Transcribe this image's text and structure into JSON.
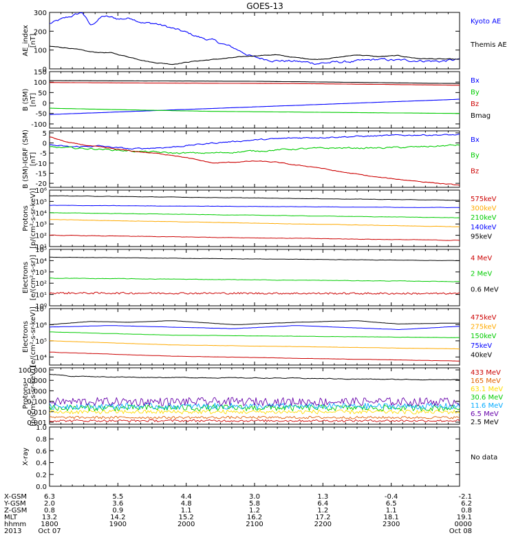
{
  "title": "GOES-13",
  "chart_data": [
    {
      "type": "line",
      "title": "",
      "ylabel": "AE_index",
      "yunit": "[nT]",
      "ylim": [
        0,
        300
      ],
      "yticks": [
        "300",
        "200",
        "100",
        "0"
      ],
      "ytick_values": [
        300,
        200,
        100,
        0
      ],
      "log": false,
      "series": [
        {
          "name": "Kyoto AE",
          "color": "#0000ff",
          "lw": 1.1,
          "x": [
            0,
            0.04,
            0.08,
            0.1,
            0.13,
            0.17,
            0.2,
            0.23,
            0.26,
            0.3,
            0.33,
            0.37,
            0.4,
            0.45,
            0.5,
            0.55,
            0.6,
            0.65,
            0.7,
            0.75,
            0.8,
            0.85,
            0.9,
            0.95,
            1.0
          ],
          "y": [
            240,
            270,
            300,
            230,
            280,
            265,
            270,
            245,
            240,
            215,
            195,
            165,
            150,
            110,
            60,
            45,
            40,
            30,
            35,
            40,
            50,
            45,
            45,
            40,
            50
          ],
          "noise": 10,
          "mode": "smooth"
        },
        {
          "name": "Themis AE",
          "color": "#000000",
          "lw": 1.1,
          "x": [
            0,
            0.05,
            0.1,
            0.15,
            0.2,
            0.25,
            0.3,
            0.35,
            0.4,
            0.5,
            0.55,
            0.6,
            0.65,
            0.7,
            0.75,
            0.8,
            0.85,
            0.9,
            1.0
          ],
          "y": [
            120,
            110,
            90,
            85,
            60,
            35,
            25,
            40,
            50,
            70,
            75,
            60,
            50,
            60,
            75,
            65,
            70,
            55,
            50
          ],
          "noise": 3,
          "mode": "smooth"
        }
      ]
    },
    {
      "type": "line",
      "title": "",
      "ylabel": "B (SM)",
      "yunit": "[nT]",
      "ylim": [
        -120,
        150
      ],
      "yticks": [
        "150",
        "100",
        "50",
        "0",
        "-50",
        "-100"
      ],
      "ytick_values": [
        150,
        100,
        50,
        0,
        -50,
        -100
      ],
      "log": false,
      "series": [
        {
          "name": "Bx",
          "color": "#0000ff",
          "lw": 1.1,
          "x": [
            0,
            1
          ],
          "y": [
            -55,
            18
          ],
          "noise": 0.3,
          "mode": "smooth"
        },
        {
          "name": "By",
          "color": "#00cc00",
          "lw": 1.1,
          "x": [
            0,
            0.2,
            0.4,
            1
          ],
          "y": [
            -25,
            -33,
            -40,
            -50
          ],
          "noise": 0.3,
          "mode": "smooth"
        },
        {
          "name": "Bz",
          "color": "#cc0000",
          "lw": 1.1,
          "x": [
            0,
            0.3,
            0.6,
            1
          ],
          "y": [
            98,
            95,
            93,
            85
          ],
          "noise": 0.3,
          "mode": "smooth"
        },
        {
          "name": "Bmag",
          "color": "#000000",
          "lw": 1.1,
          "x": [
            0,
            0.5,
            1
          ],
          "y": [
            107,
            104,
            93
          ],
          "noise": 0.3,
          "mode": "smooth"
        }
      ]
    },
    {
      "type": "line",
      "title": "",
      "ylabel": "B (SM)-IGRF (SM)",
      "yunit": "[nT]",
      "ylim": [
        -22,
        6
      ],
      "yticks": [
        "5",
        "0",
        "-5",
        "-10",
        "-15",
        "-20"
      ],
      "ytick_values": [
        5,
        0,
        -5,
        -10,
        -15,
        -20
      ],
      "log": false,
      "series": [
        {
          "name": "Bx",
          "color": "#0000ff",
          "lw": 1.1,
          "x": [
            0,
            0.05,
            0.12,
            0.2,
            0.3,
            0.4,
            0.5,
            0.6,
            0.7,
            0.8,
            0.9,
            1.0
          ],
          "y": [
            -1,
            -2,
            -1.5,
            -3,
            -2,
            0,
            1.5,
            2.5,
            3,
            3.5,
            4,
            4
          ],
          "noise": 0.5,
          "mode": "smooth"
        },
        {
          "name": "By",
          "color": "#00cc00",
          "lw": 1.1,
          "x": [
            0,
            0.05,
            0.12,
            0.2,
            0.3,
            0.4,
            0.5,
            0.6,
            0.7,
            0.8,
            0.9,
            1.0
          ],
          "y": [
            -2,
            -2.5,
            -3,
            -4,
            -5,
            -5,
            -4,
            -3,
            -2.5,
            -2.5,
            -2,
            -1
          ],
          "noise": 0.6,
          "mode": "smooth"
        },
        {
          "name": "Bz",
          "color": "#cc0000",
          "lw": 1.1,
          "x": [
            0,
            0.05,
            0.12,
            0.2,
            0.3,
            0.35,
            0.4,
            0.5,
            0.55,
            0.6,
            0.65,
            0.7,
            0.8,
            0.9,
            1.0
          ],
          "y": [
            3,
            0,
            -2,
            -4,
            -6,
            -8,
            -10,
            -9,
            -9.5,
            -11,
            -12,
            -14,
            -17,
            -19,
            -21
          ],
          "noise": 0.3,
          "mode": "smooth"
        }
      ]
    },
    {
      "type": "line",
      "title": "",
      "ylabel": "Protons",
      "yunit": "[p/(cm²-s-sr-keV)]",
      "ylim": [
        1,
        6
      ],
      "yticks": [
        "10⁶",
        "10⁵",
        "10⁴",
        "10³",
        "10²",
        "10¹"
      ],
      "ytick_values": [
        6,
        5,
        4,
        3,
        2,
        1
      ],
      "log": true,
      "series": [
        {
          "name": "575keV",
          "color": "#cc0000",
          "lw": 1.0,
          "x": [
            0,
            1
          ],
          "y": [
            2.0,
            1.55
          ],
          "noise": 0.03,
          "mode": "smooth"
        },
        {
          "name": "300keV",
          "color": "#ffaa00",
          "lw": 1.0,
          "x": [
            0,
            1
          ],
          "y": [
            3.4,
            2.75
          ],
          "noise": 0.02,
          "mode": "smooth"
        },
        {
          "name": "210keV",
          "color": "#00cc00",
          "lw": 1.0,
          "x": [
            0,
            1
          ],
          "y": [
            4.0,
            3.55
          ],
          "noise": 0.02,
          "mode": "smooth"
        },
        {
          "name": "140keV",
          "color": "#0000ff",
          "lw": 1.0,
          "x": [
            0,
            1
          ],
          "y": [
            4.65,
            4.45
          ],
          "noise": 0.02,
          "mode": "smooth"
        },
        {
          "name": "95keV",
          "color": "#000000",
          "lw": 1.0,
          "x": [
            0,
            1
          ],
          "y": [
            5.5,
            5.1
          ],
          "noise": 0.02,
          "mode": "smooth"
        }
      ]
    },
    {
      "type": "line",
      "title": "",
      "ylabel": "Electrons",
      "yunit": "[e/(cm²-s-sr)]",
      "ylim": [
        0,
        5
      ],
      "yticks": [
        "10⁵",
        "10⁴",
        "10³",
        "10²",
        "10¹",
        "10⁰"
      ],
      "ytick_values": [
        5,
        4,
        3,
        2,
        1,
        0
      ],
      "log": true,
      "series": [
        {
          "name": "4 MeV",
          "color": "#cc0000",
          "lw": 1.0,
          "x": [
            0,
            1
          ],
          "y": [
            1.1,
            1.05
          ],
          "noise": 0.08,
          "mode": "jitter"
        },
        {
          "name": "2 MeV",
          "color": "#00cc00",
          "lw": 1.0,
          "x": [
            0,
            1
          ],
          "y": [
            2.45,
            2.15
          ],
          "noise": 0.03,
          "mode": "smooth"
        },
        {
          "name": "0.6 MeV",
          "color": "#000000",
          "lw": 1.0,
          "x": [
            0,
            1
          ],
          "y": [
            4.3,
            4.0
          ],
          "noise": 0.02,
          "mode": "smooth"
        }
      ]
    },
    {
      "type": "line",
      "title": "",
      "ylabel": "Electrons",
      "yunit": "[e/(cm²-s-sr-keV)]",
      "ylim": [
        3.5,
        7
      ],
      "yticks": [
        "10⁷",
        "10⁶",
        "10⁵",
        "10⁴"
      ],
      "ytick_values": [
        7,
        6,
        5,
        4
      ],
      "log": true,
      "series": [
        {
          "name": "475keV",
          "color": "#cc0000",
          "lw": 1.0,
          "x": [
            0,
            0.3,
            1
          ],
          "y": [
            4.3,
            4.05,
            3.75
          ],
          "noise": 0.01,
          "mode": "smooth"
        },
        {
          "name": "275keV",
          "color": "#ffaa00",
          "lw": 1.0,
          "x": [
            0,
            0.3,
            1
          ],
          "y": [
            5.0,
            4.75,
            4.5
          ],
          "noise": 0.01,
          "mode": "smooth"
        },
        {
          "name": "150keV",
          "color": "#00cc00",
          "lw": 1.0,
          "x": [
            0,
            0.3,
            1
          ],
          "y": [
            5.55,
            5.35,
            5.2
          ],
          "noise": 0.01,
          "mode": "smooth"
        },
        {
          "name": "75keV",
          "color": "#0000ff",
          "lw": 1.0,
          "x": [
            0,
            0.15,
            0.3,
            0.45,
            0.6,
            0.75,
            0.85,
            1.0
          ],
          "y": [
            5.85,
            5.95,
            5.85,
            5.75,
            5.95,
            5.8,
            5.7,
            5.9
          ],
          "noise": 0.01,
          "mode": "smooth"
        },
        {
          "name": "40keV",
          "color": "#000000",
          "lw": 1.0,
          "x": [
            0,
            0.1,
            0.2,
            0.3,
            0.45,
            0.6,
            0.75,
            0.85,
            1.0
          ],
          "y": [
            6.0,
            6.2,
            6.15,
            6.25,
            6.0,
            6.15,
            6.25,
            6.05,
            6.1
          ],
          "noise": 0.01,
          "mode": "smooth"
        }
      ]
    },
    {
      "type": "line",
      "title": "",
      "ylabel": "Protons",
      "yunit": "[p/(cm²-s-sr-keV)]",
      "ylim": [
        -3.2,
        2.2
      ],
      "yticks": [
        "100.000",
        "10.000",
        "1.000",
        "0.100",
        "0.010",
        "0.001"
      ],
      "ytick_values": [
        2,
        1,
        0,
        -1,
        -2,
        -3
      ],
      "log": true,
      "series": [
        {
          "name": "433 MeV",
          "color": "#cc0000",
          "lw": 0.9,
          "x": [
            0,
            1
          ],
          "y": [
            -2.9,
            -2.9
          ],
          "noise": 0.1,
          "mode": "jitter"
        },
        {
          "name": "165 MeV",
          "color": "#e06000",
          "lw": 0.9,
          "x": [
            0,
            1
          ],
          "y": [
            -2.6,
            -2.6
          ],
          "noise": 0.12,
          "mode": "jitter"
        },
        {
          "name": "63.1 MeV",
          "color": "#ffdd00",
          "lw": 0.9,
          "x": [
            0,
            1
          ],
          "y": [
            -2.1,
            -2.1
          ],
          "noise": 0.2,
          "mode": "jitter"
        },
        {
          "name": "30.6 MeV",
          "color": "#00cc00",
          "lw": 0.9,
          "x": [
            0,
            1
          ],
          "y": [
            -1.75,
            -1.75
          ],
          "noise": 0.3,
          "mode": "jitter"
        },
        {
          "name": "11.6 MeV",
          "color": "#00aaff",
          "lw": 0.9,
          "x": [
            0,
            1
          ],
          "y": [
            -1.6,
            -1.6
          ],
          "noise": 0.3,
          "mode": "jitter"
        },
        {
          "name": "6.5 MeV",
          "color": "#6600aa",
          "lw": 0.9,
          "x": [
            0,
            1
          ],
          "y": [
            -1.2,
            -1.2
          ],
          "noise": 0.4,
          "mode": "jitter"
        },
        {
          "name": "2.5 MeV",
          "color": "#000000",
          "lw": 1.0,
          "x": [
            0,
            0.05,
            0.2,
            0.4,
            0.6,
            0.8,
            1.0
          ],
          "y": [
            1.6,
            1.4,
            1.3,
            1.25,
            1.2,
            1.1,
            1.05
          ],
          "noise": 0.05,
          "mode": "smooth"
        }
      ]
    },
    {
      "type": "line",
      "title": "",
      "ylabel": "X-ray",
      "yunit": "",
      "ylim": [
        0,
        1
      ],
      "yticks": [
        "1.0",
        "0.8",
        "0.6",
        "0.4",
        "0.2",
        "0.0"
      ],
      "ytick_values": [
        1.0,
        0.8,
        0.6,
        0.4,
        0.2,
        0.0
      ],
      "log": false,
      "note": "No data",
      "series": []
    }
  ],
  "time_axis": {
    "row_labels": [
      "X-GSM",
      "Y-GSM",
      "Z-GSM",
      "MLT",
      "hhmm",
      "2013"
    ],
    "columns": [
      [
        "6.3",
        "2.0",
        "0.8",
        "13.2",
        "1800",
        "Oct 07"
      ],
      [
        "5.5",
        "3.6",
        "0.9",
        "14.2",
        "1900",
        ""
      ],
      [
        "4.4",
        "4.8",
        "1.1",
        "15.2",
        "2000",
        ""
      ],
      [
        "3.0",
        "5.8",
        "1.2",
        "16.2",
        "2100",
        ""
      ],
      [
        "1.3",
        "6.4",
        "1.2",
        "17.2",
        "2200",
        ""
      ],
      [
        "-0.4",
        "6.5",
        "1.1",
        "18.1",
        "2300",
        ""
      ],
      [
        "-2.1",
        "6.2",
        "0.8",
        "19.1",
        "0000",
        "Oct 08"
      ]
    ]
  }
}
